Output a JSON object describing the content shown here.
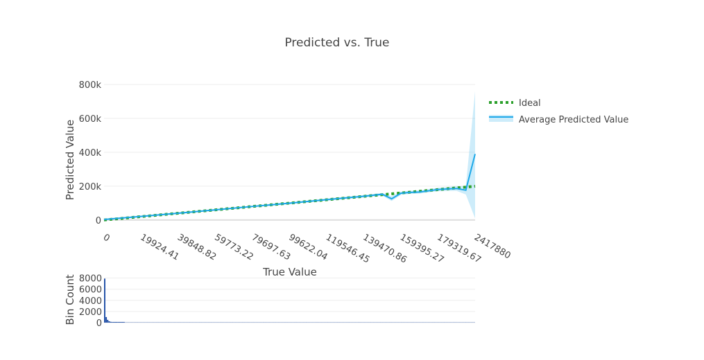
{
  "chart_data": [
    {
      "type": "line",
      "title": "Predicted vs. True",
      "xlabel": "True Value",
      "ylabel": "Predicted Value",
      "x_tick_labels": [
        "0",
        "19924.41",
        "39848.82",
        "59773.22",
        "79697.63",
        "99622.04",
        "119546.45",
        "139470.86",
        "159395.27",
        "179319.67",
        "2417880"
      ],
      "y_tick_labels": [
        "0",
        "200k",
        "400k",
        "600k",
        "800k"
      ],
      "y_ticks": [
        0,
        200000,
        400000,
        600000,
        800000
      ],
      "ylim": [
        -50000,
        800000
      ],
      "grid": true,
      "legend_position": "top-right",
      "series": [
        {
          "name": "Ideal",
          "style": "dotted",
          "color": "#2ca02c",
          "values": [
            0,
            19924.41,
            39848.82,
            59773.22,
            79697.63,
            99622.04,
            119546.45,
            139470.86,
            159395.27,
            179319.67,
            199244.08
          ]
        },
        {
          "name": "Average Predicted Value",
          "style": "solid",
          "color": "#1ca8e8",
          "x_index": [
            0,
            1,
            2,
            3,
            4,
            5,
            6,
            7,
            7.5,
            7.75,
            8,
            8.25,
            8.5,
            9,
            9.5,
            9.75,
            10
          ],
          "values": [
            3000,
            21000,
            40000,
            60000,
            80000,
            99000,
            120000,
            140000,
            152000,
            125000,
            158000,
            163000,
            165000,
            180000,
            186000,
            176000,
            390000
          ],
          "band_upper": [
            8000,
            26000,
            45000,
            65000,
            85000,
            105000,
            126000,
            147000,
            160000,
            140000,
            168000,
            172000,
            175000,
            190000,
            200000,
            200000,
            760000
          ],
          "band_lower": [
            -2000,
            16000,
            35000,
            55000,
            75000,
            93000,
            114000,
            133000,
            144000,
            112000,
            148000,
            154000,
            156000,
            170000,
            172000,
            150000,
            10000
          ]
        }
      ]
    },
    {
      "type": "bar",
      "ylabel": "Bin Count",
      "y_tick_labels": [
        "0",
        "2000",
        "4000",
        "6000",
        "8000"
      ],
      "y_ticks": [
        0,
        2000,
        4000,
        6000,
        8000
      ],
      "ylim": [
        0,
        8200
      ],
      "color": "#1f4ea6",
      "values": [
        7900,
        1000,
        500,
        250,
        150,
        100,
        80,
        60,
        50,
        40,
        30,
        20,
        15,
        10,
        8,
        5,
        5,
        4,
        4,
        3,
        3,
        3,
        2,
        2,
        2,
        2,
        2,
        2,
        2,
        2,
        2,
        2,
        2,
        2,
        2,
        2,
        2,
        2,
        2,
        2,
        2,
        2,
        2,
        2,
        2,
        2,
        2,
        2,
        2,
        2,
        2,
        2,
        2,
        2,
        2,
        2,
        2,
        2,
        2,
        2,
        2,
        2,
        2,
        2,
        2,
        2,
        2,
        2,
        2,
        2,
        2,
        2,
        2,
        2,
        2,
        2,
        2,
        2,
        2,
        2,
        2,
        2,
        2,
        2,
        2,
        2,
        2,
        2,
        2,
        2,
        2,
        2,
        2,
        2,
        2,
        2,
        2,
        2,
        2,
        2,
        2,
        2,
        2,
        2,
        2,
        2,
        2,
        2,
        2,
        2,
        2,
        2,
        2,
        2,
        2,
        2,
        2,
        2,
        2,
        2,
        2,
        2,
        2,
        2,
        2,
        2,
        2,
        2,
        2,
        2,
        2,
        2,
        2,
        2,
        2,
        2,
        2,
        2,
        2,
        2,
        2,
        2,
        2,
        2,
        2,
        2,
        2,
        2,
        2,
        2,
        2,
        2,
        2,
        2,
        2,
        2,
        2,
        2,
        2,
        2,
        2,
        2,
        2,
        2,
        2,
        2,
        2,
        2,
        2,
        2,
        2,
        2,
        2,
        2,
        2,
        2,
        2,
        2,
        2,
        2,
        2,
        2,
        2,
        2,
        2,
        2,
        2,
        2,
        2,
        2,
        2,
        2,
        2,
        2,
        2,
        2,
        2,
        2,
        2,
        2,
        2,
        2,
        2,
        2,
        2,
        2,
        2,
        2,
        2,
        2,
        2,
        2,
        2,
        2,
        2,
        2,
        2,
        2,
        2,
        2,
        2,
        2,
        2,
        2,
        2,
        2,
        2,
        2,
        2,
        2,
        2,
        2,
        2,
        2,
        2,
        2,
        2,
        2,
        2,
        2,
        2,
        2,
        2,
        2,
        2,
        2,
        2,
        2,
        2,
        2
      ]
    }
  ]
}
